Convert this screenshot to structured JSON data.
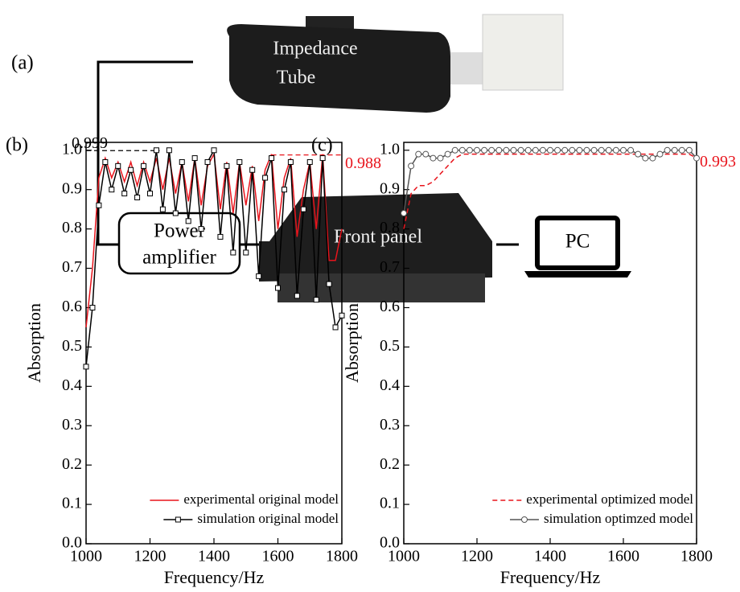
{
  "diagram": {
    "panel_label": "(a)",
    "tube_label": [
      "Impedance",
      "Tube"
    ],
    "amplifier_label": [
      "Power",
      "amplifier"
    ],
    "panel_box_label": "Front panel",
    "pc_label": "PC"
  },
  "chart_data": [
    {
      "type": "line",
      "panel_label": "(b)",
      "x_label": "Frequency/Hz",
      "y_label": "Absorption",
      "xlim": [
        1000,
        1800
      ],
      "xticks": [
        1000,
        1200,
        1400,
        1600,
        1800
      ],
      "ylim": [
        0,
        1.02
      ],
      "yticks": [
        {
          "value": 0,
          "label": "0.0"
        },
        0.1,
        0.2,
        0.3,
        0.4,
        0.5,
        0.6,
        0.7,
        0.8,
        0.9,
        {
          "value": 1,
          "label": "1.0"
        }
      ],
      "legend": "lower right",
      "x": [
        1000,
        1020,
        1040,
        1060,
        1080,
        1100,
        1120,
        1140,
        1160,
        1180,
        1200,
        1220,
        1240,
        1260,
        1280,
        1300,
        1320,
        1340,
        1360,
        1380,
        1400,
        1420,
        1440,
        1460,
        1480,
        1500,
        1520,
        1540,
        1560,
        1580,
        1600,
        1620,
        1640,
        1660,
        1680,
        1700,
        1720,
        1740,
        1760,
        1780,
        1800
      ],
      "series": [
        {
          "name": "experimental original model",
          "color": "#e8141c",
          "dash": false,
          "marker": null,
          "values": [
            0.55,
            0.7,
            0.93,
            0.98,
            0.93,
            0.97,
            0.92,
            0.97,
            0.91,
            0.97,
            0.92,
            0.98,
            0.9,
            0.98,
            0.89,
            0.97,
            0.87,
            0.98,
            0.86,
            0.96,
            0.99,
            0.85,
            0.97,
            0.84,
            0.97,
            0.86,
            0.96,
            0.82,
            0.95,
            0.99,
            0.8,
            0.93,
            0.98,
            0.78,
            0.9,
            0.97,
            0.8,
            0.99,
            0.72,
            0.72,
            0.8
          ]
        },
        {
          "name": "simulation original model",
          "color": "#000000",
          "dash": false,
          "marker": "square",
          "values": [
            0.45,
            0.6,
            0.86,
            0.97,
            0.9,
            0.96,
            0.89,
            0.95,
            0.88,
            0.96,
            0.89,
            1.0,
            0.85,
            1.0,
            0.84,
            0.97,
            0.82,
            0.98,
            0.8,
            0.97,
            1.0,
            0.78,
            0.96,
            0.74,
            0.97,
            0.74,
            0.95,
            0.68,
            0.93,
            0.98,
            0.65,
            0.9,
            0.97,
            0.63,
            0.85,
            0.97,
            0.62,
            0.98,
            0.66,
            0.55,
            0.58
          ]
        }
      ],
      "reference_lines": [
        {
          "value": 0.999,
          "color": "#000000",
          "x": [
            1000,
            1230
          ]
        },
        {
          "value": 0.988,
          "color": "#e8141c",
          "x": [
            1580,
            1800
          ]
        }
      ]
    },
    {
      "type": "line",
      "panel_label": "(c)",
      "x_label": "Frequency/Hz",
      "y_label": "Absorption",
      "xlim": [
        1000,
        1800
      ],
      "xticks": [
        1000,
        1200,
        1400,
        1600,
        1800
      ],
      "ylim": [
        0,
        1.02
      ],
      "yticks": [
        {
          "value": 0,
          "label": "0.0"
        },
        0.1,
        0.2,
        0.3,
        0.4,
        0.5,
        0.6,
        0.7,
        0.8,
        0.9,
        {
          "value": 1,
          "label": "1.0"
        }
      ],
      "legend": "lower right",
      "x": [
        1000,
        1020,
        1040,
        1060,
        1080,
        1100,
        1120,
        1140,
        1160,
        1180,
        1200,
        1220,
        1240,
        1260,
        1280,
        1300,
        1320,
        1340,
        1360,
        1380,
        1400,
        1420,
        1440,
        1460,
        1480,
        1500,
        1520,
        1540,
        1560,
        1580,
        1600,
        1620,
        1640,
        1660,
        1680,
        1700,
        1720,
        1740,
        1760,
        1780,
        1800
      ],
      "series": [
        {
          "name": "experimental optimized model",
          "color": "#e8141c",
          "dash": true,
          "marker": null,
          "values": [
            0.8,
            0.89,
            0.91,
            0.91,
            0.92,
            0.94,
            0.96,
            0.98,
            0.99,
            0.99,
            0.99,
            0.99,
            0.99,
            0.99,
            0.99,
            0.99,
            0.99,
            0.99,
            0.99,
            0.99,
            0.99,
            0.99,
            0.99,
            0.99,
            0.99,
            0.99,
            0.99,
            0.99,
            0.99,
            0.99,
            0.99,
            0.99,
            0.99,
            0.99,
            0.99,
            0.99,
            0.99,
            0.99,
            0.99,
            0.99,
            0.98
          ]
        },
        {
          "name": "simulation optimzed model",
          "color": "#555555",
          "dash": false,
          "marker": "circle",
          "values": [
            0.84,
            0.96,
            0.99,
            0.99,
            0.98,
            0.98,
            0.99,
            1.0,
            1.0,
            1.0,
            1.0,
            1.0,
            1.0,
            1.0,
            1.0,
            1.0,
            1.0,
            1.0,
            1.0,
            1.0,
            1.0,
            1.0,
            1.0,
            1.0,
            1.0,
            1.0,
            1.0,
            1.0,
            1.0,
            1.0,
            1.0,
            1.0,
            0.99,
            0.98,
            0.98,
            0.99,
            1.0,
            1.0,
            1.0,
            1.0,
            0.98
          ]
        }
      ],
      "reference_lines": [
        {
          "value": 0.993,
          "color": "#e8141c"
        }
      ]
    }
  ]
}
